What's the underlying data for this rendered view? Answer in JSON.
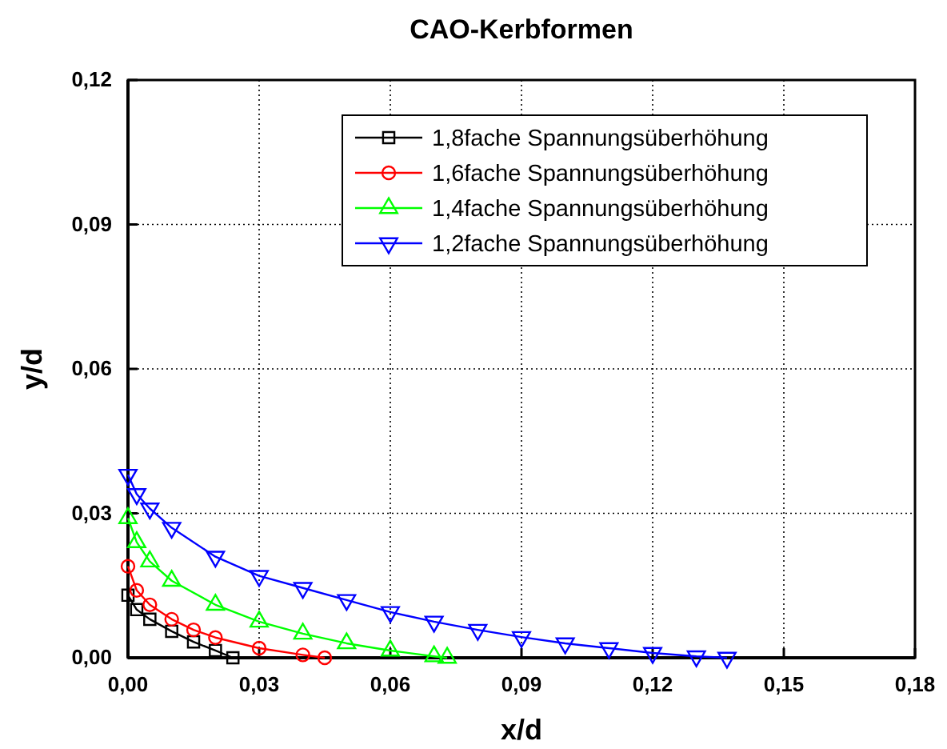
{
  "chart_data": {
    "type": "line",
    "title": "CAO-Kerbformen",
    "xlabel": "x/d",
    "ylabel": "y/d",
    "xlim": [
      0,
      0.18
    ],
    "ylim": [
      0,
      0.12
    ],
    "xticks": [
      {
        "value": 0,
        "label": "0,00"
      },
      {
        "value": 0.03,
        "label": "0,03"
      },
      {
        "value": 0.06,
        "label": "0,06"
      },
      {
        "value": 0.09,
        "label": "0,09"
      },
      {
        "value": 0.12,
        "label": "0,12"
      },
      {
        "value": 0.15,
        "label": "0,15"
      },
      {
        "value": 0.18,
        "label": "0,18"
      }
    ],
    "yticks": [
      {
        "value": 0,
        "label": "0,00"
      },
      {
        "value": 0.03,
        "label": "0,03"
      },
      {
        "value": 0.06,
        "label": "0,06"
      },
      {
        "value": 0.09,
        "label": "0,09"
      },
      {
        "value": 0.12,
        "label": "0,12"
      }
    ],
    "grid": true,
    "legend": "top right",
    "line_style": "solid",
    "series": [
      {
        "name": "1,8fache Spannungsüberhöhung",
        "color": "#000000",
        "marker": "square",
        "x": [
          0,
          0.002,
          0.005,
          0.01,
          0.015,
          0.02,
          0.024
        ],
        "values": [
          0.013,
          0.01,
          0.008,
          0.0055,
          0.0033,
          0.0015,
          0
        ]
      },
      {
        "name": "1,6fache Spannungsüberhöhung",
        "color": "#ff0000",
        "marker": "circle",
        "x": [
          0,
          0.002,
          0.005,
          0.01,
          0.015,
          0.02,
          0.03,
          0.04,
          0.045
        ],
        "values": [
          0.019,
          0.014,
          0.011,
          0.008,
          0.0058,
          0.0042,
          0.002,
          0.0006,
          0
        ]
      },
      {
        "name": "1,4fache Spannungsüberhöhung",
        "color": "#00ff00",
        "marker": "triangle",
        "x": [
          0,
          0.002,
          0.005,
          0.01,
          0.02,
          0.03,
          0.04,
          0.05,
          0.06,
          0.07,
          0.073
        ],
        "values": [
          0.029,
          0.024,
          0.02,
          0.016,
          0.011,
          0.0075,
          0.005,
          0.003,
          0.0015,
          0.0003,
          0
        ]
      },
      {
        "name": "1,2fache Spannungsüberhöhung",
        "color": "#0000ff",
        "marker": "triangle-down",
        "x": [
          0,
          0.002,
          0.005,
          0.01,
          0.02,
          0.03,
          0.04,
          0.05,
          0.06,
          0.07,
          0.08,
          0.09,
          0.1,
          0.11,
          0.12,
          0.13,
          0.137
        ],
        "values": [
          0.038,
          0.034,
          0.031,
          0.027,
          0.021,
          0.017,
          0.0145,
          0.012,
          0.0095,
          0.0075,
          0.0058,
          0.0043,
          0.003,
          0.002,
          0.001,
          0.0003,
          0
        ]
      }
    ]
  }
}
